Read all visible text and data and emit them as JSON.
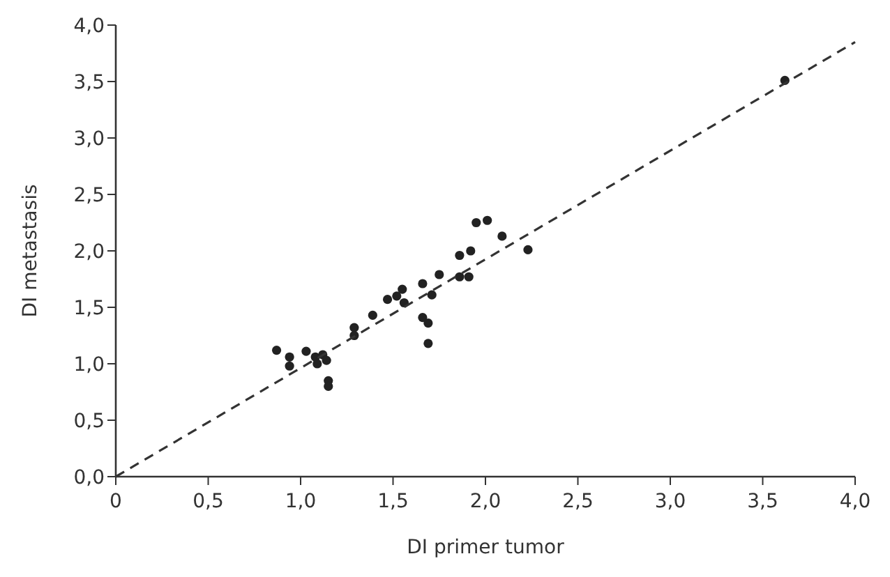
{
  "chart_data": {
    "type": "scatter",
    "xlabel": "DI primer tumor",
    "ylabel": "DI metastasis",
    "xlim": [
      0,
      4
    ],
    "ylim": [
      0,
      4
    ],
    "xticks": [
      0,
      {
        "value": 0.5,
        "label": "0,5"
      },
      {
        "value": 1,
        "label": "1,0"
      },
      {
        "value": 1.5,
        "label": "1,5"
      },
      {
        "value": 2,
        "label": "2,0"
      },
      {
        "value": 2.5,
        "label": "2,5"
      },
      {
        "value": 3,
        "label": "3,0"
      },
      {
        "value": 3.5,
        "label": "3,5"
      },
      {
        "value": 4,
        "label": "4,0"
      }
    ],
    "yticks": [
      {
        "value": 0,
        "label": "0,0"
      },
      {
        "value": 0.5,
        "label": "0,5"
      },
      {
        "value": 1,
        "label": "1,0"
      },
      {
        "value": 1.5,
        "label": "1,5"
      },
      {
        "value": 2,
        "label": "2,0"
      },
      {
        "value": 2.5,
        "label": "2,5"
      },
      {
        "value": 3,
        "label": "3,0"
      },
      {
        "value": 3.5,
        "label": "3,5"
      },
      {
        "value": 4,
        "label": "4,0"
      }
    ],
    "grid": false,
    "marker": "circle",
    "series": [
      {
        "color": "#222222",
        "x": [
          0.87,
          0.94,
          0.94,
          1.03,
          1.08,
          1.12,
          1.09,
          1.14,
          1.15,
          1.15,
          1.29,
          1.29,
          1.39,
          1.47,
          1.52,
          1.55,
          1.56,
          1.66,
          1.71,
          1.66,
          1.69,
          1.69,
          1.75,
          1.86,
          1.92,
          1.86,
          1.91,
          1.95,
          2.01,
          2.09,
          2.23,
          3.62
        ],
        "values": [
          1.12,
          1.06,
          0.98,
          1.11,
          1.06,
          1.08,
          1.0,
          1.03,
          0.85,
          0.8,
          1.32,
          1.25,
          1.43,
          1.57,
          1.6,
          1.66,
          1.54,
          1.71,
          1.61,
          1.41,
          1.36,
          1.18,
          1.79,
          1.96,
          2.0,
          1.77,
          1.77,
          2.25,
          2.27,
          2.13,
          2.01,
          3.51
        ]
      },
      {
        "color": "#333333",
        "type": "line",
        "line_style": "dashed",
        "marker": "none",
        "x": [
          0,
          4
        ],
        "values": [
          0,
          3.85
        ]
      }
    ]
  }
}
